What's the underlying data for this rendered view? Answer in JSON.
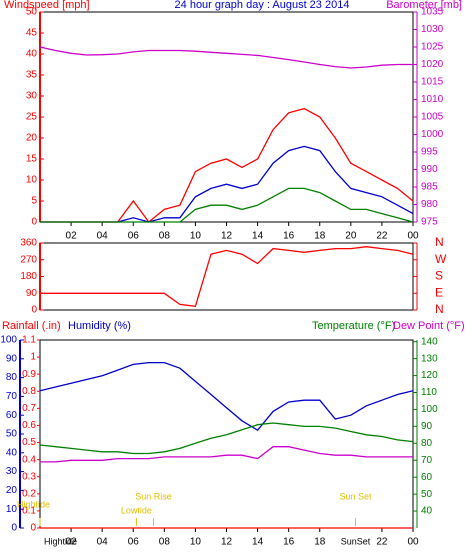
{
  "chart_data": [
    {
      "type": "line",
      "title": "24 hour graph day : August 23 2014",
      "y_label": "Windspeed [mph]",
      "y2_label": "Barometer [mb]",
      "x": [
        0,
        1,
        2,
        3,
        4,
        5,
        6,
        7,
        8,
        9,
        10,
        11,
        12,
        13,
        14,
        15,
        16,
        17,
        18,
        19,
        20,
        21,
        22,
        23,
        24
      ],
      "xlim": [
        0,
        24
      ],
      "xticks": [
        {
          "value": 2,
          "label": "02"
        },
        {
          "value": 4,
          "label": "04"
        },
        {
          "value": 6,
          "label": "06"
        },
        {
          "value": 8,
          "label": "08"
        },
        10,
        12,
        14,
        16,
        18,
        20,
        22,
        {
          "value": 24,
          "label": "00"
        }
      ],
      "ylim": [
        0,
        50
      ],
      "yticks": [
        0,
        5,
        10,
        15,
        20,
        25,
        30,
        35,
        40,
        45,
        50
      ],
      "y2lim": [
        975,
        1035
      ],
      "y2ticks": [
        975,
        980,
        985,
        990,
        995,
        1000,
        1005,
        1010,
        1015,
        1020,
        1025,
        1030,
        1035
      ],
      "series": [
        {
          "color": "#ff0000",
          "values": [
            0,
            0,
            0,
            0,
            0,
            0,
            5,
            0,
            3,
            4,
            12,
            14,
            15,
            13,
            15,
            22,
            26,
            27,
            25,
            20,
            14,
            12,
            10,
            8,
            5
          ]
        },
        {
          "color": "#0000cc",
          "values": [
            0,
            0,
            0,
            0,
            0,
            0,
            1,
            0,
            1,
            1,
            6,
            8,
            9,
            8,
            9,
            14,
            17,
            18,
            17,
            12,
            8,
            7,
            6,
            4,
            2
          ]
        },
        {
          "color": "#008000",
          "values": [
            0,
            0,
            0,
            0,
            0,
            0,
            0,
            0,
            0,
            0,
            3,
            4,
            4,
            3,
            4,
            6,
            8,
            8,
            7,
            5,
            3,
            3,
            2,
            1,
            0
          ]
        },
        {
          "color": "#cc00cc",
          "axis": "y2",
          "values": [
            1025,
            1024,
            1023.2,
            1022.7,
            1022.8,
            1023,
            1023.6,
            1024,
            1024,
            1024,
            1023.8,
            1023.5,
            1023.2,
            1022.9,
            1022.6,
            1022,
            1021.4,
            1020.7,
            1020,
            1019.4,
            1019,
            1019.3,
            1019.8,
            1020,
            1020
          ]
        }
      ]
    },
    {
      "type": "line",
      "x": [
        0,
        1,
        2,
        3,
        4,
        5,
        6,
        7,
        8,
        9,
        10,
        11,
        12,
        13,
        14,
        15,
        16,
        17,
        18,
        19,
        20,
        21,
        22,
        23,
        24
      ],
      "xlim": [
        0,
        24
      ],
      "ylim": [
        0,
        360
      ],
      "yticks": [
        0,
        90,
        180,
        270,
        360
      ],
      "y2ticks": [
        {
          "value": 360,
          "label": "N"
        },
        {
          "value": 270,
          "label": "W"
        },
        {
          "value": 180,
          "label": "S"
        },
        {
          "value": 90,
          "label": "E"
        },
        {
          "value": 0,
          "label": "N"
        }
      ],
      "series": [
        {
          "color": "#ff0000",
          "values": [
            90,
            90,
            90,
            90,
            90,
            90,
            90,
            90,
            90,
            30,
            20,
            300,
            320,
            300,
            250,
            330,
            320,
            310,
            320,
            330,
            330,
            340,
            330,
            320,
            300
          ]
        }
      ]
    },
    {
      "type": "line",
      "y_label": "Humidity (%)",
      "y3_label": "Rainfall (.in)",
      "y2_label": "Temperature (°F)",
      "y2b_label": "Dew Point (°F)",
      "x": [
        0,
        1,
        2,
        3,
        4,
        5,
        6,
        7,
        8,
        9,
        10,
        11,
        12,
        13,
        14,
        15,
        16,
        17,
        18,
        19,
        20,
        21,
        22,
        23,
        24
      ],
      "xlim": [
        0,
        24
      ],
      "xticks": [
        {
          "value": 2,
          "label": "02"
        },
        {
          "value": 4,
          "label": "04"
        },
        {
          "value": 6,
          "label": "06"
        },
        {
          "value": 8,
          "label": "08"
        },
        10,
        12,
        14,
        16,
        18,
        {
          "value": 22,
          "label": "22"
        },
        {
          "value": 24,
          "label": "00"
        }
      ],
      "ylim": [
        0,
        100
      ],
      "yticks": [
        0,
        10,
        20,
        30,
        40,
        50,
        60,
        70,
        80,
        90,
        100
      ],
      "y3lim": [
        0,
        1.1
      ],
      "y3ticks": [
        0,
        0.1,
        0.2,
        0.3,
        0.4,
        0.5,
        0.6,
        0.7,
        0.8,
        0.9,
        1,
        1.1
      ],
      "y2lim": [
        30,
        141
      ],
      "y2ticks": [
        40,
        50,
        60,
        70,
        80,
        90,
        100,
        110,
        120,
        130,
        140
      ],
      "series": [
        {
          "color": "#0000cc",
          "values": [
            73,
            75,
            77,
            79,
            81,
            84,
            87,
            88,
            88,
            85,
            78,
            71,
            64,
            57,
            52,
            62,
            67,
            68,
            68,
            58,
            60,
            65,
            68,
            71,
            73
          ]
        },
        {
          "color": "#008000",
          "axis": "y2",
          "values": [
            79,
            78,
            77,
            76,
            75,
            75,
            74,
            74,
            75,
            77,
            80,
            83,
            85,
            88,
            91,
            92,
            91,
            90,
            90,
            89,
            87,
            85,
            84,
            82,
            81
          ]
        },
        {
          "color": "#cc00cc",
          "axis": "y2",
          "values": [
            69,
            69,
            70,
            70,
            70,
            71,
            71,
            71,
            72,
            72,
            72,
            72,
            73,
            73,
            71,
            78,
            78,
            76,
            74,
            73,
            73,
            72,
            72,
            72,
            72
          ]
        },
        {
          "color": "#ff0000",
          "axis": "y3",
          "values": [
            0,
            0,
            0,
            0,
            0,
            0,
            0,
            0,
            0,
            0,
            0,
            0,
            0,
            0,
            0,
            0,
            0,
            0,
            0,
            0,
            0,
            0,
            0,
            0,
            0
          ]
        }
      ],
      "annotations": [
        {
          "text": "Hightide",
          "x": 0
        },
        {
          "text": "Lowtide",
          "x": 6.2
        },
        {
          "text": "Sun Rise",
          "x": 7.3
        },
        {
          "text": "Sun Set",
          "x": 20.3
        }
      ],
      "bottom_labels": [
        {
          "text": "Hightide",
          "x": 0
        },
        {
          "text": "SunSet",
          "x": 20.3
        }
      ]
    }
  ]
}
